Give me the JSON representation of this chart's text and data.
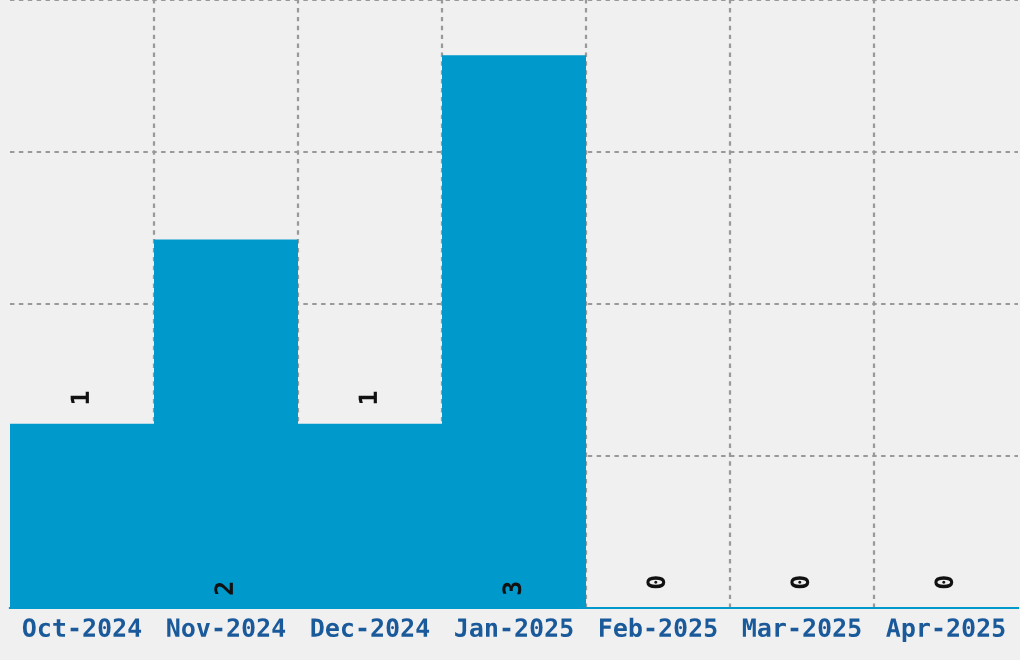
{
  "chart_data": {
    "type": "bar",
    "categories": [
      "Oct-2024",
      "Nov-2024",
      "Dec-2024",
      "Jan-2025",
      "Feb-2025",
      "Mar-2025",
      "Apr-2025"
    ],
    "values": [
      1,
      2,
      1,
      3,
      0,
      0,
      0
    ],
    "color": "#0099cc",
    "ylim": [
      0,
      3.3
    ],
    "yticks": [
      {
        "value": 0.825,
        "label": null
      },
      {
        "value": 1.65,
        "label": null
      },
      {
        "value": 2.475,
        "label": null
      },
      {
        "value": 3.3,
        "label": null
      }
    ],
    "tick_labels": "x",
    "grid": true,
    "data_labels": true
  }
}
